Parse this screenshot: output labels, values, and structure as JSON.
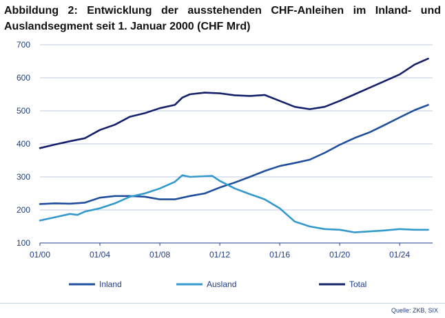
{
  "title_line1": "Abbildung 2: Entwicklung der ausstehenden CHF-Anleihen im Inland- und",
  "title_line2": "Auslandsegment seit 1. Januar 2000 (CHF Mrd)",
  "source": "Quelle: ZKB, SIX",
  "colors": {
    "Inland": "#1f4e9c",
    "Ausland": "#3399cc",
    "Total": "#15206b",
    "grid": "#1f3c88"
  },
  "chart_data": {
    "type": "line",
    "title": "Abbildung 2: Entwicklung der ausstehenden CHF-Anleihen im Inland- und Auslandsegment seit 1. Januar 2000 (CHF Mrd)",
    "xlabel": "",
    "ylabel": "",
    "xlim": [
      2000,
      2026.2
    ],
    "ylim": [
      100,
      700
    ],
    "yticks": [
      100,
      200,
      300,
      400,
      500,
      600,
      700
    ],
    "xticks": [
      {
        "label": "01/00",
        "value": 2000
      },
      {
        "label": "01/04",
        "value": 2004
      },
      {
        "label": "01/08",
        "value": 2008
      },
      {
        "label": "01/12",
        "value": 2012
      },
      {
        "label": "01/16",
        "value": 2016
      },
      {
        "label": "01/20",
        "value": 2020
      },
      {
        "label": "01/24",
        "value": 2024
      }
    ],
    "grid": true,
    "legend_position": "bottom",
    "series": [
      {
        "name": "Inland",
        "color": "#1f4e9c",
        "points": [
          [
            2000.0,
            218
          ],
          [
            2001.0,
            220
          ],
          [
            2002.0,
            219
          ],
          [
            2003.0,
            222
          ],
          [
            2004.0,
            237
          ],
          [
            2005.0,
            242
          ],
          [
            2006.0,
            242
          ],
          [
            2007.0,
            240
          ],
          [
            2008.0,
            232
          ],
          [
            2009.0,
            232
          ],
          [
            2010.0,
            242
          ],
          [
            2011.0,
            250
          ],
          [
            2012.0,
            268
          ],
          [
            2013.0,
            283
          ],
          [
            2014.0,
            300
          ],
          [
            2015.0,
            318
          ],
          [
            2016.0,
            333
          ],
          [
            2017.0,
            342
          ],
          [
            2018.0,
            352
          ],
          [
            2019.0,
            373
          ],
          [
            2020.0,
            397
          ],
          [
            2021.0,
            418
          ],
          [
            2022.0,
            435
          ],
          [
            2023.0,
            457
          ],
          [
            2024.0,
            480
          ],
          [
            2025.0,
            502
          ],
          [
            2025.9,
            518
          ]
        ]
      },
      {
        "name": "Ausland",
        "color": "#3399cc",
        "points": [
          [
            2000.0,
            168
          ],
          [
            2001.0,
            178
          ],
          [
            2002.0,
            188
          ],
          [
            2002.5,
            185
          ],
          [
            2003.0,
            195
          ],
          [
            2004.0,
            205
          ],
          [
            2005.0,
            220
          ],
          [
            2006.0,
            240
          ],
          [
            2007.0,
            250
          ],
          [
            2008.0,
            265
          ],
          [
            2009.0,
            285
          ],
          [
            2009.5,
            305
          ],
          [
            2010.0,
            300
          ],
          [
            2011.0,
            302
          ],
          [
            2011.5,
            303
          ],
          [
            2012.0,
            288
          ],
          [
            2013.0,
            265
          ],
          [
            2014.0,
            248
          ],
          [
            2015.0,
            232
          ],
          [
            2016.0,
            205
          ],
          [
            2017.0,
            165
          ],
          [
            2018.0,
            150
          ],
          [
            2019.0,
            142
          ],
          [
            2020.0,
            140
          ],
          [
            2021.0,
            132
          ],
          [
            2022.0,
            135
          ],
          [
            2023.0,
            138
          ],
          [
            2024.0,
            142
          ],
          [
            2025.0,
            140
          ],
          [
            2025.9,
            140
          ]
        ]
      },
      {
        "name": "Total",
        "color": "#15206b",
        "points": [
          [
            2000.0,
            387
          ],
          [
            2001.0,
            398
          ],
          [
            2002.0,
            408
          ],
          [
            2003.0,
            417
          ],
          [
            2004.0,
            442
          ],
          [
            2005.0,
            458
          ],
          [
            2006.0,
            482
          ],
          [
            2007.0,
            493
          ],
          [
            2008.0,
            508
          ],
          [
            2009.0,
            518
          ],
          [
            2009.5,
            540
          ],
          [
            2010.0,
            550
          ],
          [
            2011.0,
            555
          ],
          [
            2012.0,
            553
          ],
          [
            2013.0,
            547
          ],
          [
            2014.0,
            545
          ],
          [
            2015.0,
            548
          ],
          [
            2016.0,
            530
          ],
          [
            2017.0,
            512
          ],
          [
            2018.0,
            505
          ],
          [
            2019.0,
            512
          ],
          [
            2020.0,
            530
          ],
          [
            2021.0,
            550
          ],
          [
            2022.0,
            570
          ],
          [
            2023.0,
            590
          ],
          [
            2024.0,
            610
          ],
          [
            2025.0,
            640
          ],
          [
            2025.9,
            658
          ]
        ]
      }
    ]
  }
}
